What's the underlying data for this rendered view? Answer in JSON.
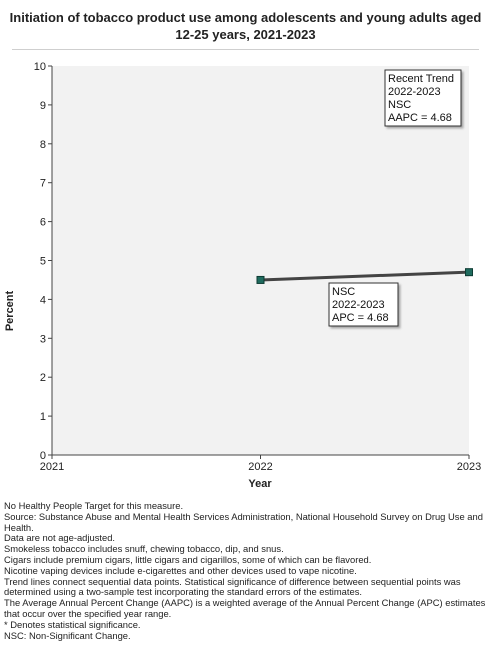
{
  "chart_data": {
    "type": "line",
    "title": "Initiation of tobacco product use among adolescents and young adults aged 12-25 years, 2021-2023",
    "xlabel": "Year",
    "ylabel": "Percent",
    "x_categories": [
      "2021",
      "2022",
      "2023"
    ],
    "ylim": [
      0,
      10
    ],
    "yticks": [
      "0",
      "1",
      "2",
      "3",
      "4",
      "5",
      "6",
      "7",
      "8",
      "9",
      "10"
    ],
    "grid": false,
    "series": [
      {
        "color": "#1f6b5e",
        "points": [
          {
            "x": "2022",
            "y": 4.5
          },
          {
            "x": "2023",
            "y": 4.7
          }
        ]
      }
    ],
    "annotations": [
      {
        "id": "recent-trend",
        "lines": [
          "Recent Trend",
          "2022-2023",
          "NSC",
          "AAPC =  4.68"
        ]
      },
      {
        "id": "segment",
        "lines": [
          "NSC",
          "2022-2023",
          "APC =  4.68"
        ]
      }
    ]
  },
  "notes": [
    "No Healthy People Target for this measure.",
    "Source: Substance Abuse and Mental Health Services Administration, National Household Survey on Drug Use and Health.",
    "Data are not age-adjusted.",
    "Smokeless tobacco includes snuff, chewing tobacco, dip, and snus.",
    "Cigars include premium cigars, little cigars and cigarillos, some of which can be flavored.",
    "Nicotine vaping devices include e-cigarettes and other devices used to vape nicotine.",
    "Trend lines connect sequential data points. Statistical significance of difference between sequential points was determined using a two-sample test incorporating the standard errors of the estimates.",
    "The Average Annual Percent Change (AAPC) is a weighted average of the Annual Percent Change (APC) estimates that occur over the specified year range.",
    "* Denotes statistical significance.",
    "NSC: Non-Significant Change."
  ]
}
